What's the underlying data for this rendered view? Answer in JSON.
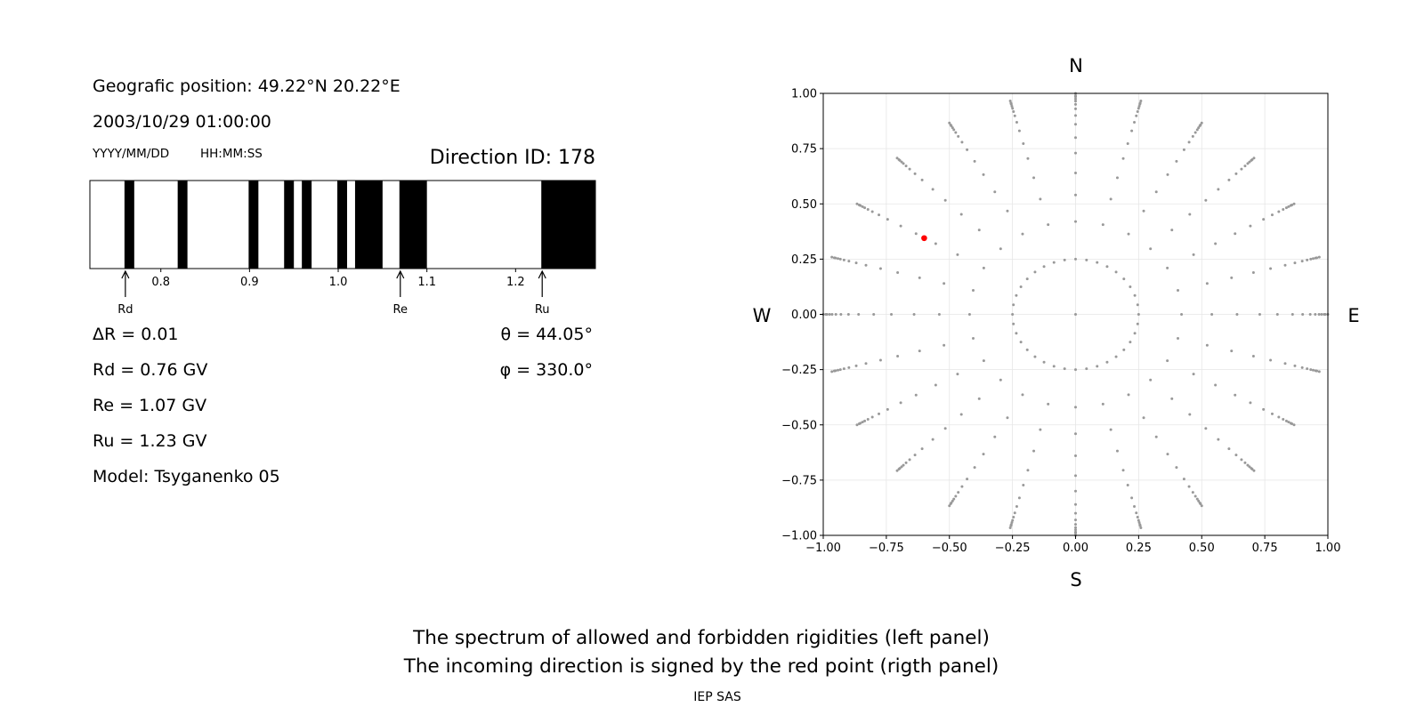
{
  "left_panel": {
    "position": "Geografic position: 49.22°N 20.22°E",
    "datetime": "2003/10/29 01:00:00",
    "date_format": "YYYY/MM/DD",
    "time_format": "HH:MM:SS",
    "direction": "Direction ID: 178",
    "delta_r": "ΔR = 0.01",
    "rd": "Rd = 0.76 GV",
    "re": "Re = 1.07 GV",
    "ru": "Ru = 1.23 GV",
    "model": "Model: Tsyganenko 05",
    "theta": "θ = 44.05°",
    "phi": "φ = 330.0°"
  },
  "right_panel": {
    "north": "N",
    "south": "S",
    "west": "W",
    "east": "E"
  },
  "footer": {
    "line1": "The spectrum of allowed and forbidden rigidities (left panel)",
    "line2": "The incoming direction is signed by the red point (rigth panel)",
    "credit": "IEP SAS"
  },
  "chart_data": [
    {
      "type": "bar",
      "description_free": true,
      "x_range": [
        0.72,
        1.29
      ],
      "xticks": [
        0.8,
        0.9,
        1.0,
        1.1,
        1.2
      ],
      "forbidden_bands": [
        [
          0.759,
          0.77
        ],
        [
          0.819,
          0.83
        ],
        [
          0.899,
          0.91
        ],
        [
          0.939,
          0.95
        ],
        [
          0.959,
          0.97
        ],
        [
          0.999,
          1.01
        ],
        [
          1.019,
          1.05
        ],
        [
          1.069,
          1.1
        ],
        [
          1.229,
          1.29
        ]
      ],
      "markers": [
        {
          "label": "Rd",
          "value": 0.76
        },
        {
          "label": "Re",
          "value": 1.07
        },
        {
          "label": "Ru",
          "value": 1.23
        }
      ],
      "colors": {
        "forbidden": "#000000",
        "allowed": "#ffffff"
      }
    },
    {
      "type": "scatter",
      "xlim": [
        -1.0,
        1.0
      ],
      "ylim": [
        -1.0,
        1.0
      ],
      "xticks": [
        "−1.00",
        "−0.75",
        "−0.50",
        "−0.25",
        "0.00",
        "0.25",
        "0.50",
        "0.75",
        "1.00"
      ],
      "yticks": [
        "1.00",
        "0.75",
        "0.50",
        "0.25",
        "0.00",
        "−0.25",
        "−0.50",
        "−0.75",
        "−1.00"
      ],
      "tick_values": [
        -1.0,
        -0.75,
        -0.5,
        -0.25,
        0.0,
        0.25,
        0.5,
        0.75,
        1.0
      ],
      "grid": true,
      "direction_grid": {
        "inner_circle_radius": 0.25,
        "inner_circle_points": 36,
        "azimuth_step_deg": 15,
        "radial_steps": [
          0.42,
          0.54,
          0.64,
          0.73,
          0.8,
          0.86,
          0.9,
          0.93,
          0.95,
          0.965,
          0.975,
          0.985,
          0.99,
          1.0
        ],
        "color": "#999999"
      },
      "highlight_point": {
        "x": -0.6,
        "y": 0.345,
        "color": "#ff0000"
      }
    }
  ]
}
